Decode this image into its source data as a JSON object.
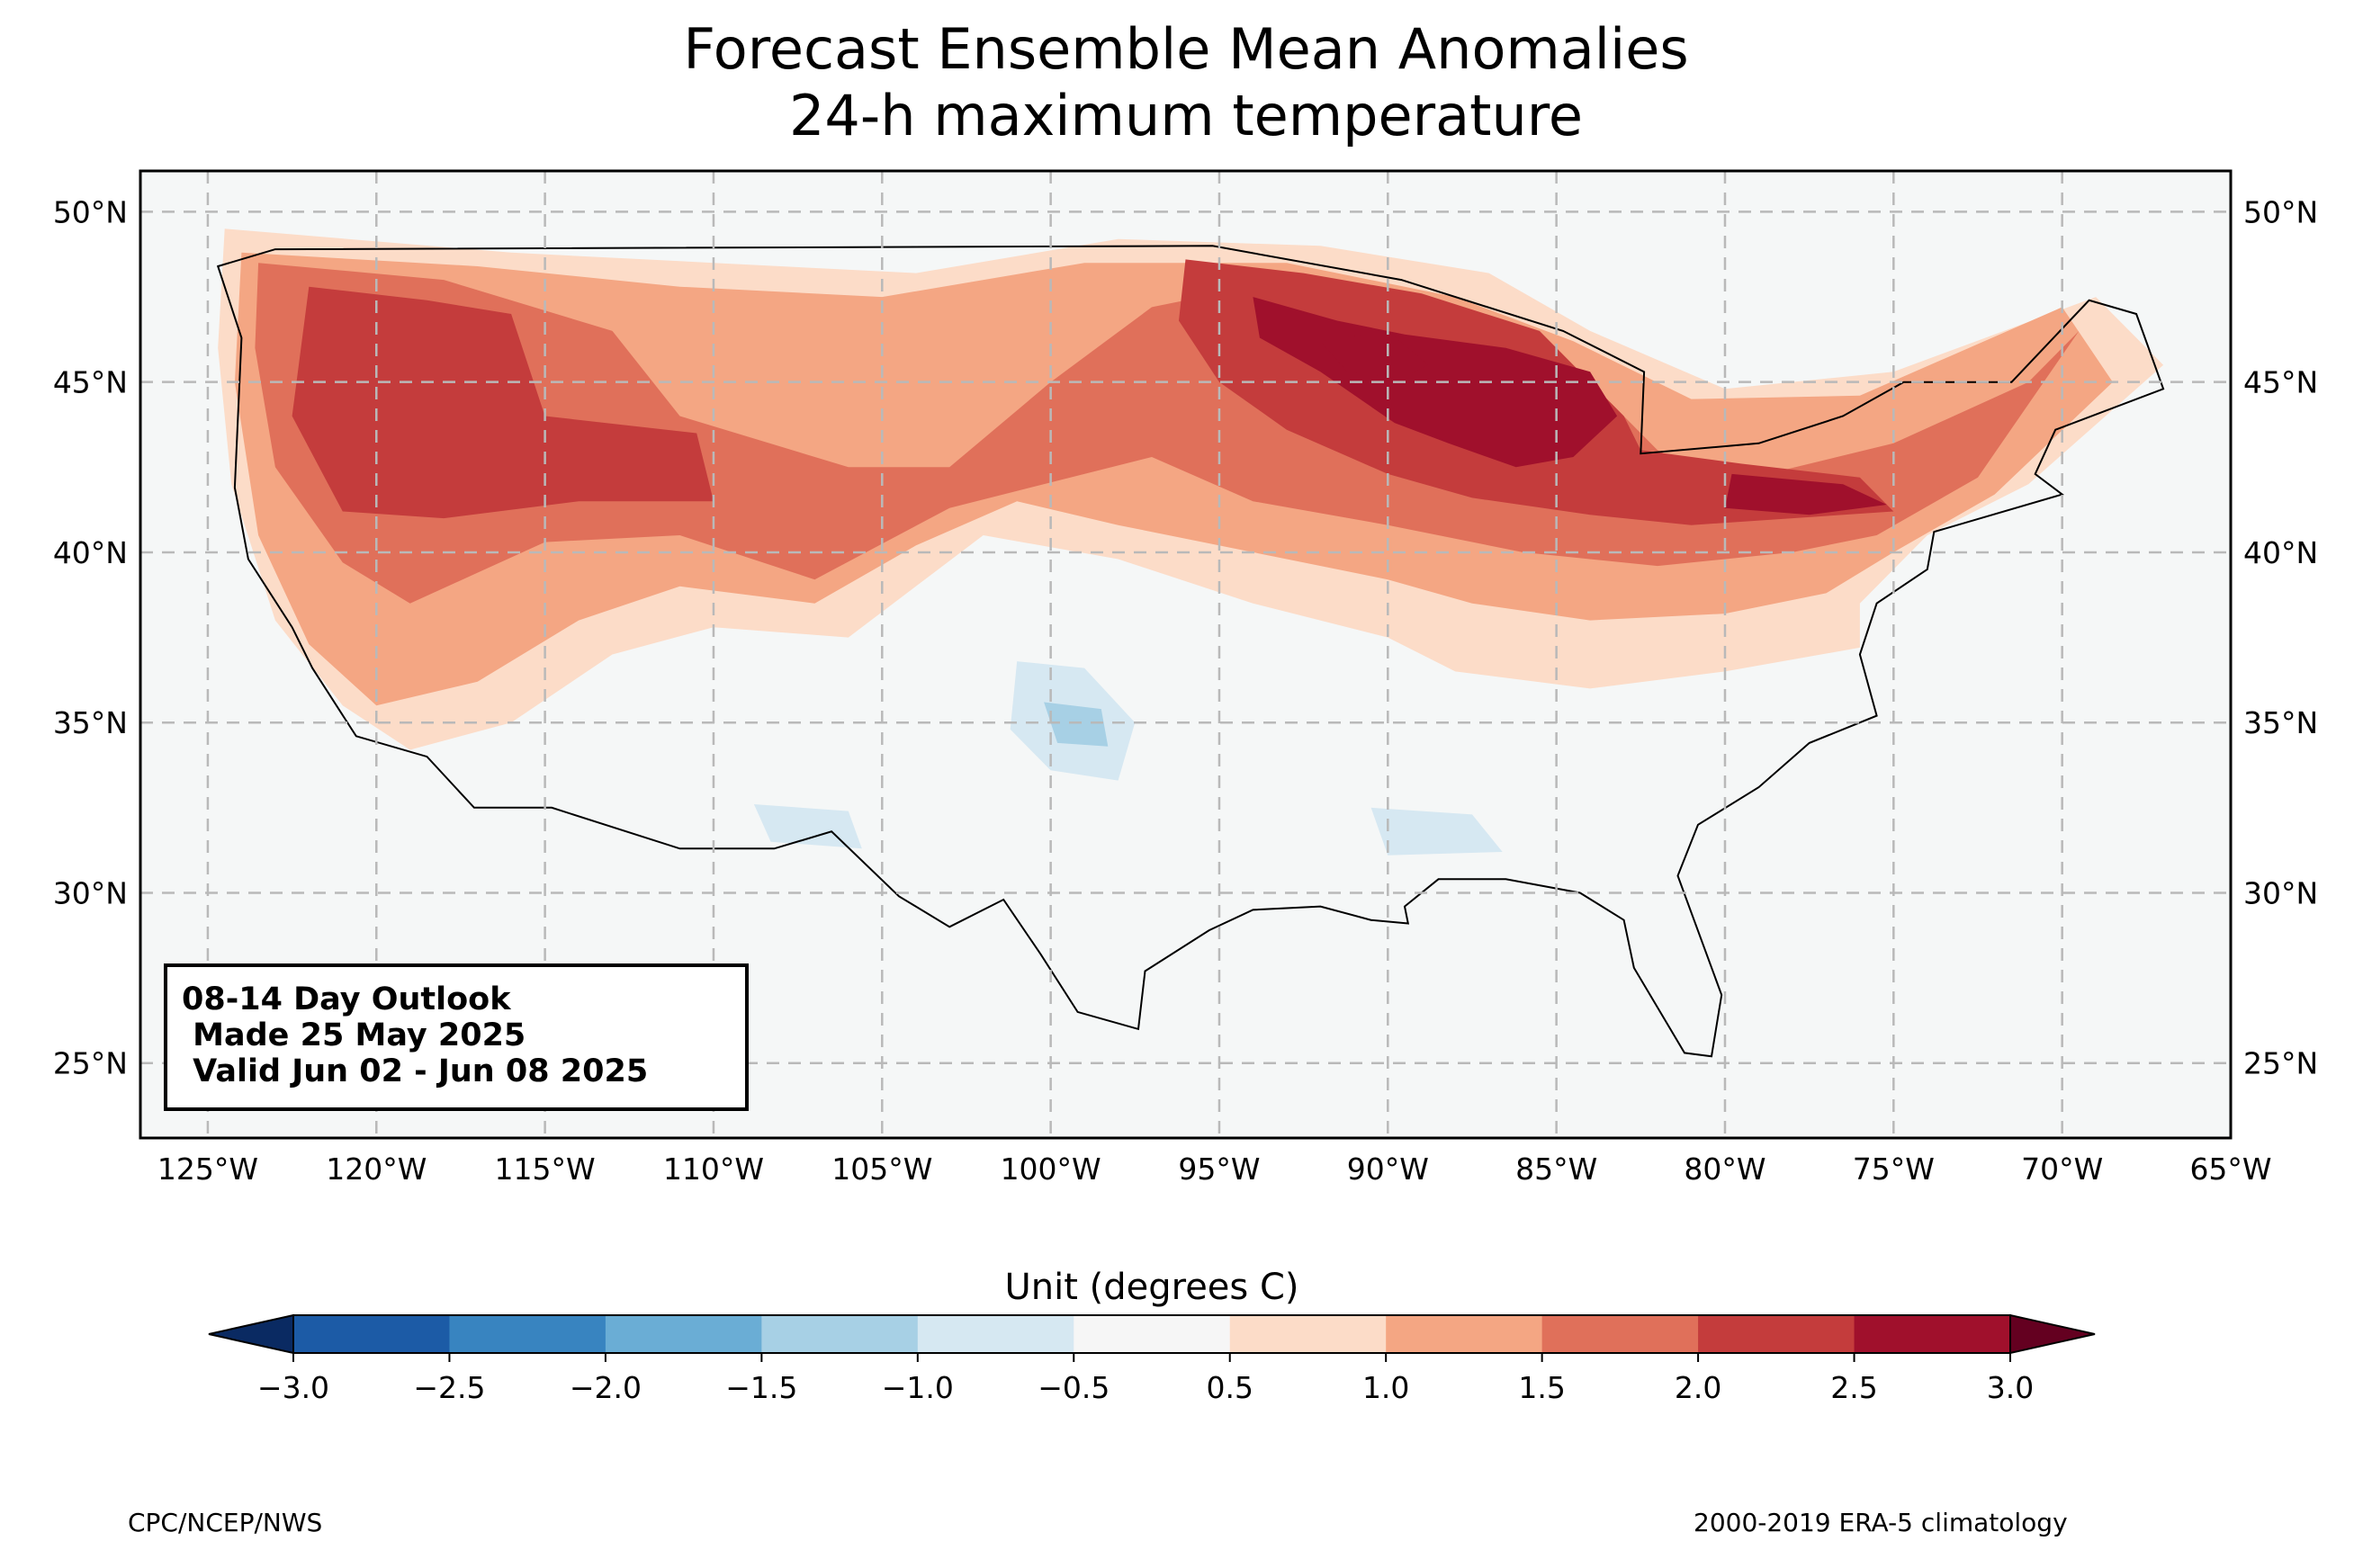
{
  "title": {
    "line1": "Forecast Ensemble Mean Anomalies",
    "line2": "24-h maximum temperature"
  },
  "map": {
    "projection": "plate-carree",
    "lon_range": [
      -127,
      -65
    ],
    "lat_range": [
      22.8,
      51.2
    ],
    "grid": "dashed",
    "lat_ticks": [
      {
        "value": 50,
        "label": "50°N"
      },
      {
        "value": 45,
        "label": "45°N"
      },
      {
        "value": 40,
        "label": "40°N"
      },
      {
        "value": 35,
        "label": "35°N"
      },
      {
        "value": 30,
        "label": "30°N"
      },
      {
        "value": 25,
        "label": "25°N"
      }
    ],
    "lon_ticks": [
      {
        "value": -125,
        "label": "125°W"
      },
      {
        "value": -120,
        "label": "120°W"
      },
      {
        "value": -115,
        "label": "115°W"
      },
      {
        "value": -110,
        "label": "110°W"
      },
      {
        "value": -105,
        "label": "105°W"
      },
      {
        "value": -100,
        "label": "100°W"
      },
      {
        "value": -95,
        "label": "95°W"
      },
      {
        "value": -90,
        "label": "90°W"
      },
      {
        "value": -85,
        "label": "85°W"
      },
      {
        "value": -80,
        "label": "80°W"
      },
      {
        "value": -75,
        "label": "75°W"
      },
      {
        "value": -70,
        "label": "70°W"
      },
      {
        "value": -65,
        "label": "65°W"
      }
    ],
    "anomaly_regions": [
      {
        "level": 0.5,
        "points": [
          [
            -124.5,
            49.5
          ],
          [
            -116,
            48.8
          ],
          [
            -110,
            48.5
          ],
          [
            -104,
            48.2
          ],
          [
            -98,
            49.2
          ],
          [
            -92,
            49
          ],
          [
            -87,
            48.2
          ],
          [
            -84,
            46.5
          ],
          [
            -80,
            44.8
          ],
          [
            -75,
            45.3
          ],
          [
            -69,
            47.5
          ],
          [
            -67,
            45.5
          ],
          [
            -71,
            42
          ],
          [
            -74,
            40.5
          ],
          [
            -76,
            38.5
          ],
          [
            -76,
            37.2
          ],
          [
            -80,
            36.5
          ],
          [
            -84,
            36
          ],
          [
            -88,
            36.5
          ],
          [
            -90,
            37.5
          ],
          [
            -94,
            38.5
          ],
          [
            -98,
            39.8
          ],
          [
            -102,
            40.5
          ],
          [
            -104,
            39
          ],
          [
            -106,
            37.5
          ],
          [
            -110,
            37.8
          ],
          [
            -113,
            37
          ],
          [
            -116,
            35
          ],
          [
            -119,
            34.2
          ],
          [
            -121,
            35.5
          ],
          [
            -123,
            38
          ],
          [
            -124.3,
            42
          ],
          [
            -124.7,
            46
          ]
        ]
      },
      {
        "level": 1.0,
        "points": [
          [
            -124,
            48.8
          ],
          [
            -117,
            48.4
          ],
          [
            -111,
            47.8
          ],
          [
            -105,
            47.5
          ],
          [
            -99,
            48.5
          ],
          [
            -93,
            48.5
          ],
          [
            -88,
            47.5
          ],
          [
            -84.5,
            46.2
          ],
          [
            -81,
            44.5
          ],
          [
            -76,
            44.6
          ],
          [
            -70,
            47.2
          ],
          [
            -68.5,
            45
          ],
          [
            -72,
            41.7
          ],
          [
            -75,
            40
          ],
          [
            -77,
            38.8
          ],
          [
            -80,
            38.2
          ],
          [
            -84,
            38
          ],
          [
            -87.5,
            38.5
          ],
          [
            -90,
            39.2
          ],
          [
            -94,
            40
          ],
          [
            -98,
            40.8
          ],
          [
            -101,
            41.5
          ],
          [
            -104,
            40.2
          ],
          [
            -107,
            38.5
          ],
          [
            -111,
            39
          ],
          [
            -114,
            38
          ],
          [
            -117,
            36.2
          ],
          [
            -120,
            35.5
          ],
          [
            -122,
            37.3
          ],
          [
            -123.5,
            40.5
          ],
          [
            -124.2,
            45
          ]
        ]
      },
      {
        "level": 1.5,
        "points": [
          [
            -123.5,
            48.5
          ],
          [
            -118,
            48
          ],
          [
            -113,
            46.5
          ],
          [
            -111,
            44
          ],
          [
            -106,
            42.5
          ],
          [
            -103,
            42.5
          ],
          [
            -100,
            45
          ],
          [
            -97,
            47.2
          ],
          [
            -93,
            48
          ],
          [
            -89,
            47
          ],
          [
            -85,
            46
          ],
          [
            -82,
            43
          ],
          [
            -80,
            42
          ],
          [
            -75,
            43.2
          ],
          [
            -71,
            45
          ],
          [
            -69.5,
            46.5
          ],
          [
            -72.5,
            42.2
          ],
          [
            -75.5,
            40.5
          ],
          [
            -78,
            40
          ],
          [
            -82,
            39.6
          ],
          [
            -86,
            40
          ],
          [
            -90,
            40.8
          ],
          [
            -94,
            41.5
          ],
          [
            -97,
            42.8
          ],
          [
            -103,
            41.3
          ],
          [
            -107,
            39.2
          ],
          [
            -111,
            40.5
          ],
          [
            -115,
            40.3
          ],
          [
            -119,
            38.5
          ],
          [
            -121,
            39.7
          ],
          [
            -123,
            42.5
          ],
          [
            -123.6,
            46
          ]
        ]
      },
      {
        "level": 2.0,
        "points": [
          [
            -122,
            47.8
          ],
          [
            -118.5,
            47.4
          ],
          [
            -116,
            47
          ],
          [
            -115,
            44
          ],
          [
            -110.5,
            43.5
          ],
          [
            -110,
            41.5
          ],
          [
            -114,
            41.5
          ],
          [
            -118,
            41
          ],
          [
            -121,
            41.2
          ],
          [
            -122.5,
            44
          ]
        ]
      },
      {
        "level": 2.0,
        "points": [
          [
            -96,
            48.6
          ],
          [
            -92.5,
            48.2
          ],
          [
            -89,
            47.6
          ],
          [
            -85.5,
            46.5
          ],
          [
            -83,
            44
          ],
          [
            -82.5,
            43
          ],
          [
            -79.5,
            42.6
          ],
          [
            -76,
            42.2
          ],
          [
            -75,
            41.2
          ],
          [
            -78,
            41
          ],
          [
            -81,
            40.8
          ],
          [
            -84,
            41.1
          ],
          [
            -87.5,
            41.6
          ],
          [
            -90,
            42.3
          ],
          [
            -93,
            43.6
          ],
          [
            -95,
            45
          ],
          [
            -96.2,
            46.8
          ]
        ]
      },
      {
        "level": 2.5,
        "points": [
          [
            -94,
            47.5
          ],
          [
            -91.5,
            46.8
          ],
          [
            -89.5,
            46.4
          ],
          [
            -86.5,
            46
          ],
          [
            -84,
            45.3
          ],
          [
            -83.2,
            44
          ],
          [
            -84.5,
            42.8
          ],
          [
            -86.2,
            42.5
          ],
          [
            -88.2,
            43.2
          ],
          [
            -89.8,
            43.8
          ],
          [
            -92,
            45.3
          ],
          [
            -93.8,
            46.3
          ]
        ]
      },
      {
        "level": 2.5,
        "points": [
          [
            -79.8,
            42.3
          ],
          [
            -76.5,
            42
          ],
          [
            -75.2,
            41.4
          ],
          [
            -77.5,
            41.1
          ],
          [
            -80,
            41.3
          ]
        ]
      },
      {
        "level": 3.0,
        "points": [
          [
            -92,
            46.2
          ],
          [
            -90,
            46.5
          ],
          [
            -88.8,
            45.5
          ],
          [
            -89.6,
            45.1
          ],
          [
            -91.2,
            45.3
          ]
        ]
      },
      {
        "level": 3.0,
        "points": [
          [
            -85.5,
            45
          ],
          [
            -84.2,
            44.6
          ],
          [
            -84.4,
            44
          ],
          [
            -85.6,
            44.2
          ]
        ]
      },
      {
        "level": -0.5,
        "points": [
          [
            -101,
            36.8
          ],
          [
            -99,
            36.6
          ],
          [
            -97.5,
            35
          ],
          [
            -98,
            33.3
          ],
          [
            -100,
            33.6
          ],
          [
            -101.2,
            34.8
          ]
        ]
      },
      {
        "level": -1.0,
        "points": [
          [
            -100.2,
            35.6
          ],
          [
            -98.5,
            35.4
          ],
          [
            -98.3,
            34.3
          ],
          [
            -99.8,
            34.4
          ]
        ]
      },
      {
        "level": -0.5,
        "points": [
          [
            -108.8,
            32.6
          ],
          [
            -106,
            32.4
          ],
          [
            -105.6,
            31.3
          ],
          [
            -108.3,
            31.5
          ]
        ]
      },
      {
        "level": -0.5,
        "points": [
          [
            -90.5,
            32.5
          ],
          [
            -87.5,
            32.3
          ],
          [
            -86.6,
            31.2
          ],
          [
            -90,
            31.1
          ]
        ]
      }
    ]
  },
  "outlook": {
    "line1": "08-14 Day Outlook",
    "line2": " Made 25 May 2025",
    "line3": " Valid Jun 02 - Jun 08 2025"
  },
  "colorbar": {
    "title": "Unit (degrees C)",
    "ticks": [
      "−3.0",
      "−2.5",
      "−2.0",
      "−1.5",
      "−1.0",
      "−0.5",
      "0.5",
      "1.0",
      "1.5",
      "2.0",
      "2.5",
      "3.0"
    ],
    "colors": [
      "#1c5ba6",
      "#3884c0",
      "#6aadd5",
      "#a7d0e5",
      "#d6e8f2",
      "#f6f6f6",
      "#fcdcc8",
      "#f4a683",
      "#e0705a",
      "#c43c3c",
      "#a0102c"
    ],
    "under_color": "#0a2a62",
    "over_color": "#640020",
    "neutral_color": "#f5f7f7"
  },
  "footer": {
    "left": "CPC/NCEP/NWS",
    "right": "2000-2019 ERA-5 climatology"
  }
}
